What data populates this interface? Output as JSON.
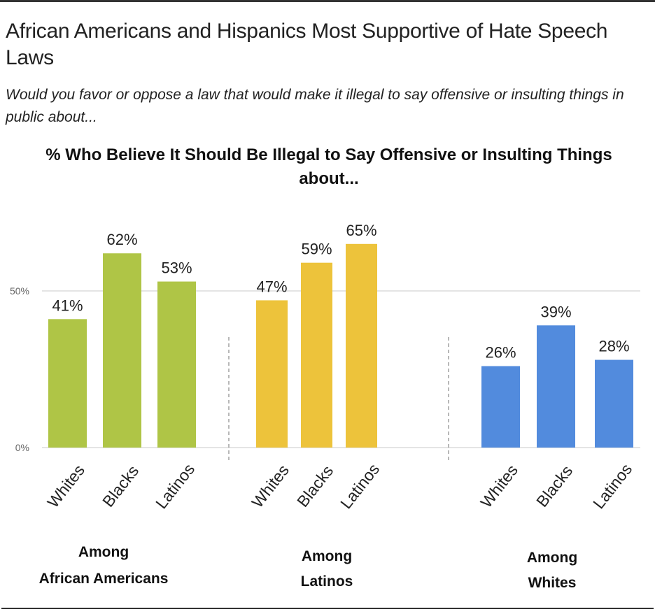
{
  "header": {
    "title": "African Americans and Hispanics Most Supportive of Hate Speech Laws",
    "subtitle": "Would you favor or oppose a law that would make it illegal to say offensive or insulting things in public about..."
  },
  "chart_data": {
    "type": "bar",
    "title": "% Who Believe It Should Be Illegal to Say Offensive or Insulting Things about...",
    "xlabel": "",
    "ylabel": "",
    "ylim": [
      0,
      100
    ],
    "y_ticks": [
      {
        "value": 0,
        "label": "0%"
      },
      {
        "value": 50,
        "label": "50%"
      }
    ],
    "grid": true,
    "legend": "none",
    "categories": [
      "Whites",
      "Blacks",
      "Latinos"
    ],
    "groups": [
      {
        "name": "Among African Americans",
        "label_lines": [
          "Among",
          "African Americans"
        ],
        "color": "#AFC546",
        "values": [
          41,
          62,
          53
        ],
        "data_labels": [
          "41%",
          "62%",
          "53%"
        ]
      },
      {
        "name": "Among Latinos",
        "label_lines": [
          "Among",
          "Latinos"
        ],
        "color": "#EDC33B",
        "values": [
          47,
          59,
          65
        ],
        "data_labels": [
          "47%",
          "59%",
          "65%"
        ]
      },
      {
        "name": "Among Whites",
        "label_lines": [
          "Among",
          "Whites"
        ],
        "color": "#528BDD",
        "values": [
          26,
          39,
          28
        ],
        "data_labels": [
          "26%",
          "39%",
          "28%"
        ]
      }
    ]
  }
}
